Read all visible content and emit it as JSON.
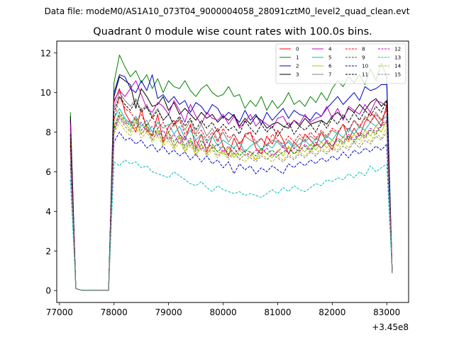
{
  "chart_data": {
    "type": "line",
    "suptitle": "Data file: modeM0/AS1A10_073T04_9000004058_28091cztM0_level2_quad_clean.evt",
    "title": "Quadrant 0 module wise count rates with 100.0s bins.",
    "xlabel": "",
    "ylabel": "",
    "x_offset_label": "+3.45e8",
    "x_offset": 345000000,
    "xlim": [
      76950,
      83400
    ],
    "ylim": [
      -0.6,
      12.6
    ],
    "x_ticks": [
      77000,
      78000,
      79000,
      80000,
      81000,
      82000,
      83000
    ],
    "x_tick_labels": [
      "77000",
      "78000",
      "79000",
      "80000",
      "81000",
      "82000",
      "83000"
    ],
    "y_ticks": [
      0,
      2,
      4,
      6,
      8,
      10,
      12
    ],
    "y_tick_labels": [
      "0",
      "2",
      "4",
      "6",
      "8",
      "10",
      "12"
    ],
    "legend_location": "upper right",
    "x": [
      77200,
      77300,
      77400,
      77500,
      77600,
      77700,
      77800,
      77900,
      78000,
      78100,
      78200,
      78300,
      78400,
      78500,
      78600,
      78700,
      78800,
      78900,
      79000,
      79100,
      79200,
      79300,
      79400,
      79500,
      79600,
      79700,
      79800,
      79900,
      80000,
      80100,
      80200,
      80300,
      80400,
      80500,
      80600,
      80700,
      80800,
      80900,
      81000,
      81100,
      81200,
      81300,
      81400,
      81500,
      81600,
      81700,
      81800,
      81900,
      82000,
      82100,
      82200,
      82300,
      82400,
      82500,
      82600,
      82700,
      82800,
      82900,
      83000,
      83100
    ],
    "series": [
      {
        "name": "0",
        "color": "#ff0000",
        "dashed": false,
        "values": [
          8.2,
          0.1,
          0.02,
          0.02,
          0.02,
          0.02,
          0.02,
          0.02,
          9.5,
          10.2,
          9.0,
          8.5,
          8.0,
          9.2,
          8.1,
          7.8,
          8.9,
          7.5,
          8.3,
          8.6,
          7.9,
          7.6,
          8.4,
          7.2,
          7.9,
          7.0,
          7.8,
          8.2,
          7.3,
          6.8,
          7.7,
          7.1,
          7.9,
          8.0,
          7.2,
          6.9,
          7.8,
          7.4,
          8.1,
          7.6,
          6.9,
          7.5,
          7.2,
          7.9,
          7.6,
          7.3,
          8.0,
          7.5,
          7.1,
          7.9,
          8.4,
          7.6,
          8.2,
          7.8,
          8.5,
          9.0,
          8.7,
          8.3,
          9.4,
          0.9
        ]
      },
      {
        "name": "1",
        "color": "#008000",
        "dashed": false,
        "values": [
          9.0,
          0.1,
          0.02,
          0.02,
          0.02,
          0.02,
          0.02,
          0.02,
          10.5,
          11.9,
          11.3,
          10.8,
          11.1,
          10.5,
          10.9,
          10.2,
          10.7,
          10.0,
          10.6,
          10.3,
          10.2,
          10.6,
          10.1,
          9.8,
          10.2,
          10.4,
          10.0,
          9.8,
          9.9,
          10.3,
          9.8,
          9.9,
          9.2,
          9.6,
          9.3,
          9.8,
          9.1,
          9.6,
          9.2,
          9.5,
          10.0,
          9.4,
          9.6,
          9.3,
          9.8,
          9.5,
          10.0,
          9.6,
          10.2,
          10.6,
          10.3,
          10.8,
          10.5,
          10.9,
          10.4,
          11.2,
          10.6,
          11.5,
          10.8,
          0.9
        ]
      },
      {
        "name": "2",
        "color": "#0000cc",
        "dashed": false,
        "values": [
          8.6,
          0.1,
          0.02,
          0.02,
          0.02,
          0.02,
          0.02,
          0.02,
          10.0,
          10.9,
          10.8,
          10.2,
          10.0,
          10.6,
          10.1,
          10.9,
          9.7,
          9.9,
          9.5,
          9.8,
          9.4,
          9.6,
          9.0,
          9.5,
          9.3,
          8.9,
          9.4,
          9.2,
          8.7,
          9.0,
          8.8,
          8.5,
          9.1,
          8.6,
          8.9,
          8.4,
          9.0,
          8.6,
          8.9,
          9.2,
          8.7,
          9.1,
          8.9,
          8.8,
          8.6,
          9.0,
          8.8,
          9.2,
          9.5,
          9.8,
          9.4,
          9.7,
          10.0,
          9.6,
          10.3,
          10.1,
          10.2,
          10.4,
          10.4,
          0.9
        ]
      },
      {
        "name": "3",
        "color": "#000000",
        "dashed": false,
        "values": [
          8.8,
          0.1,
          0.02,
          0.02,
          0.02,
          0.02,
          0.02,
          0.02,
          9.8,
          10.8,
          10.6,
          10.4,
          9.2,
          10.2,
          9.8,
          9.3,
          9.4,
          9.8,
          9.1,
          9.5,
          8.9,
          9.2,
          8.9,
          8.6,
          9.0,
          8.7,
          8.9,
          8.5,
          8.8,
          8.6,
          8.9,
          8.3,
          8.7,
          8.4,
          8.8,
          8.6,
          8.2,
          8.4,
          8.5,
          8.3,
          8.2,
          8.6,
          8.3,
          8.7,
          8.4,
          8.5,
          8.6,
          8.4,
          8.8,
          9.0,
          8.7,
          9.2,
          9.0,
          9.4,
          9.1,
          9.5,
          9.7,
          9.3,
          9.6,
          0.9
        ]
      },
      {
        "name": "4",
        "color": "#bf00bf",
        "dashed": false,
        "values": [
          8.4,
          0.1,
          0.02,
          0.02,
          0.02,
          0.02,
          0.02,
          0.02,
          9.6,
          10.1,
          9.8,
          10.2,
          10.6,
          9.9,
          9.2,
          9.0,
          9.5,
          9.3,
          8.9,
          9.6,
          9.1,
          8.5,
          9.4,
          8.8,
          8.4,
          9.0,
          8.7,
          8.6,
          8.9,
          8.4,
          8.8,
          8.2,
          8.5,
          8.9,
          8.3,
          8.6,
          8.4,
          8.2,
          8.7,
          8.8,
          8.3,
          8.6,
          8.4,
          8.9,
          8.5,
          8.7,
          8.8,
          9.3,
          8.7,
          9.2,
          8.6,
          9.3,
          9.1,
          8.9,
          9.4,
          9.0,
          9.6,
          9.5,
          9.3,
          0.9
        ]
      },
      {
        "name": "5",
        "color": "#00bfbf",
        "dashed": false,
        "values": [
          7.4,
          0.1,
          0.02,
          0.02,
          0.02,
          0.02,
          0.02,
          0.02,
          8.7,
          9.2,
          8.7,
          8.4,
          8.8,
          8.3,
          8.6,
          8.0,
          8.5,
          8.2,
          8.4,
          7.9,
          8.3,
          7.7,
          8.1,
          7.6,
          7.9,
          7.5,
          7.8,
          7.3,
          7.6,
          7.4,
          7.2,
          7.5,
          7.0,
          7.3,
          7.5,
          7.1,
          7.4,
          7.2,
          7.6,
          7.3,
          7.5,
          7.2,
          7.4,
          7.6,
          7.3,
          7.7,
          7.5,
          7.8,
          7.6,
          8.0,
          7.7,
          8.2,
          7.9,
          8.3,
          8.1,
          8.5,
          8.3,
          8.6,
          8.8,
          0.9
        ]
      },
      {
        "name": "6",
        "color": "#bfbf00",
        "dashed": false,
        "values": [
          7.0,
          0.1,
          0.02,
          0.02,
          0.02,
          0.02,
          0.02,
          0.02,
          8.3,
          8.9,
          8.5,
          8.1,
          8.6,
          7.9,
          8.3,
          7.6,
          8.1,
          7.4,
          8.0,
          7.2,
          7.8,
          7.0,
          7.6,
          6.8,
          7.4,
          6.9,
          7.3,
          7.0,
          6.9,
          7.2,
          6.7,
          7.1,
          6.8,
          7.0,
          6.6,
          7.2,
          6.9,
          6.7,
          7.1,
          6.8,
          7.3,
          6.9,
          7.2,
          7.0,
          7.4,
          7.1,
          7.5,
          7.2,
          7.6,
          7.3,
          7.8,
          7.5,
          7.9,
          7.6,
          8.1,
          7.8,
          8.3,
          8.0,
          8.6,
          0.9
        ]
      },
      {
        "name": "7",
        "color": "#808080",
        "dashed": false,
        "values": [
          7.8,
          0.1,
          0.02,
          0.02,
          0.02,
          0.02,
          0.02,
          0.02,
          9.2,
          10.0,
          9.6,
          9.3,
          9.7,
          9.1,
          9.4,
          8.8,
          9.2,
          8.6,
          8.9,
          8.3,
          8.7,
          8.1,
          8.6,
          7.9,
          8.4,
          7.8,
          8.2,
          7.6,
          8.0,
          7.5,
          7.9,
          7.4,
          7.8,
          7.6,
          7.4,
          7.7,
          7.3,
          7.6,
          7.5,
          7.2,
          7.6,
          7.3,
          7.7,
          7.5,
          7.8,
          7.6,
          8.0,
          7.7,
          8.1,
          7.9,
          8.4,
          8.0,
          8.6,
          8.2,
          8.8,
          8.5,
          9.0,
          8.6,
          9.1,
          0.9
        ]
      },
      {
        "name": "8",
        "color": "#ff0000",
        "dashed": true,
        "values": [
          7.6,
          0.1,
          0.02,
          0.02,
          0.02,
          0.02,
          0.02,
          0.02,
          8.6,
          9.8,
          9.2,
          9.0,
          8.6,
          8.9,
          8.3,
          8.8,
          8.2,
          8.5,
          8.0,
          8.4,
          8.6,
          7.9,
          8.3,
          7.8,
          8.1,
          7.6,
          8.0,
          7.5,
          8.2,
          7.7,
          7.9,
          7.4,
          7.8,
          8.0,
          7.5,
          7.7,
          7.3,
          7.9,
          7.6,
          7.4,
          7.8,
          7.5,
          7.9,
          7.6,
          8.0,
          7.7,
          8.1,
          7.8,
          8.2,
          8.0,
          8.4,
          8.1,
          8.6,
          8.3,
          8.7,
          8.5,
          8.9,
          8.6,
          9.2,
          0.9
        ]
      },
      {
        "name": "9",
        "color": "#008000",
        "dashed": true,
        "values": [
          7.3,
          0.1,
          0.02,
          0.02,
          0.02,
          0.02,
          0.02,
          0.02,
          8.2,
          9.0,
          8.6,
          8.3,
          8.7,
          8.1,
          8.4,
          7.8,
          8.2,
          7.7,
          8.0,
          7.5,
          7.9,
          7.3,
          7.7,
          7.1,
          7.6,
          7.2,
          7.4,
          7.0,
          7.3,
          6.9,
          7.2,
          6.8,
          7.1,
          7.0,
          6.8,
          7.2,
          6.9,
          7.1,
          6.8,
          7.0,
          7.2,
          6.9,
          7.1,
          7.3,
          7.0,
          7.4,
          7.2,
          7.5,
          7.3,
          7.6,
          7.4,
          7.8,
          7.5,
          7.9,
          7.7,
          8.1,
          7.9,
          8.3,
          8.5,
          0.9
        ]
      },
      {
        "name": "10",
        "color": "#0000cc",
        "dashed": true,
        "values": [
          6.4,
          0.1,
          0.02,
          0.02,
          0.02,
          0.02,
          0.02,
          0.02,
          7.5,
          8.0,
          7.6,
          7.7,
          7.4,
          7.6,
          7.2,
          7.4,
          7.0,
          7.3,
          6.9,
          7.1,
          6.8,
          7.0,
          6.6,
          6.9,
          6.5,
          6.8,
          6.4,
          6.6,
          6.2,
          6.5,
          5.9,
          6.4,
          6.1,
          6.3,
          5.9,
          6.2,
          6.0,
          6.3,
          6.1,
          5.9,
          6.4,
          6.2,
          6.5,
          6.3,
          6.6,
          6.4,
          6.7,
          6.5,
          6.8,
          6.6,
          7.0,
          6.7,
          7.1,
          6.9,
          7.2,
          7.0,
          7.3,
          7.1,
          7.4,
          0.9
        ]
      },
      {
        "name": "11",
        "color": "#000000",
        "dashed": true,
        "values": [
          7.9,
          0.1,
          0.02,
          0.02,
          0.02,
          0.02,
          0.02,
          0.02,
          9.0,
          9.8,
          9.4,
          9.1,
          9.6,
          9.0,
          9.3,
          8.7,
          9.1,
          8.6,
          8.9,
          8.4,
          8.8,
          8.3,
          8.7,
          8.1,
          8.6,
          8.2,
          8.5,
          8.0,
          8.4,
          8.1,
          8.3,
          7.9,
          8.6,
          8.2,
          7.9,
          8.4,
          8.0,
          8.3,
          7.8,
          8.2,
          8.5,
          7.9,
          8.3,
          8.1,
          8.4,
          8.0,
          8.6,
          8.2,
          8.7,
          8.4,
          8.9,
          8.5,
          9.0,
          8.6,
          9.1,
          8.8,
          9.3,
          9.0,
          9.6,
          0.9
        ]
      },
      {
        "name": "12",
        "color": "#bf00bf",
        "dashed": true,
        "values": [
          7.1,
          0.1,
          0.02,
          0.02,
          0.02,
          0.02,
          0.02,
          0.02,
          8.1,
          8.8,
          8.4,
          8.6,
          8.2,
          8.5,
          8.0,
          8.3,
          7.8,
          8.1,
          7.6,
          7.9,
          7.4,
          7.8,
          7.3,
          7.6,
          7.1,
          7.5,
          7.2,
          7.4,
          7.0,
          7.3,
          6.9,
          7.2,
          7.0,
          6.8,
          7.1,
          6.9,
          7.2,
          6.8,
          7.0,
          7.3,
          6.9,
          7.2,
          7.0,
          7.4,
          7.1,
          7.5,
          7.2,
          7.6,
          7.3,
          7.7,
          7.5,
          7.9,
          7.6,
          8.0,
          7.8,
          8.2,
          8.0,
          8.4,
          8.6,
          0.9
        ]
      },
      {
        "name": "13",
        "color": "#00bfbf",
        "dashed": true,
        "values": [
          5.6,
          0.1,
          0.02,
          0.02,
          0.02,
          0.02,
          0.02,
          0.02,
          6.5,
          6.3,
          6.6,
          6.4,
          6.5,
          6.2,
          6.3,
          6.0,
          5.9,
          5.8,
          5.7,
          6.0,
          5.8,
          5.6,
          5.4,
          5.3,
          5.5,
          5.2,
          5.0,
          5.3,
          5.1,
          5.0,
          4.9,
          5.0,
          4.8,
          4.9,
          4.8,
          4.7,
          4.9,
          5.1,
          4.9,
          5.2,
          5.0,
          5.3,
          5.1,
          5.0,
          5.2,
          5.4,
          5.3,
          5.6,
          5.5,
          5.7,
          5.6,
          5.9,
          5.7,
          6.0,
          5.8,
          6.3,
          6.0,
          6.2,
          6.4,
          0.9
        ]
      },
      {
        "name": "14",
        "color": "#bfbf00",
        "dashed": true,
        "values": [
          6.8,
          0.1,
          0.02,
          0.02,
          0.02,
          0.02,
          0.02,
          0.02,
          7.9,
          8.5,
          8.1,
          7.8,
          8.3,
          7.7,
          8.0,
          7.5,
          7.8,
          7.3,
          7.6,
          7.1,
          7.5,
          7.0,
          7.3,
          6.9,
          7.2,
          6.8,
          7.1,
          6.7,
          7.0,
          6.6,
          6.9,
          6.7,
          6.5,
          6.8,
          6.6,
          6.9,
          6.7,
          6.5,
          6.8,
          6.6,
          6.9,
          6.7,
          7.0,
          6.8,
          7.1,
          6.9,
          7.2,
          7.0,
          7.3,
          7.1,
          7.5,
          7.2,
          7.6,
          7.4,
          7.8,
          7.5,
          8.0,
          7.7,
          8.2,
          0.9
        ]
      },
      {
        "name": "15",
        "color": "#808080",
        "dashed": true,
        "values": [
          7.0,
          0.1,
          0.02,
          0.02,
          0.02,
          0.02,
          0.02,
          0.02,
          8.0,
          8.7,
          8.3,
          8.0,
          8.5,
          7.9,
          8.2,
          7.6,
          8.0,
          7.5,
          7.8,
          7.3,
          7.7,
          7.2,
          7.5,
          7.0,
          7.4,
          6.9,
          7.2,
          6.8,
          7.1,
          6.7,
          7.0,
          6.6,
          6.9,
          6.7,
          6.5,
          6.8,
          6.6,
          6.9,
          6.7,
          6.5,
          6.8,
          6.6,
          6.9,
          6.7,
          7.0,
          6.8,
          7.1,
          6.9,
          7.2,
          7.0,
          7.3,
          7.1,
          7.5,
          7.2,
          7.6,
          7.4,
          7.8,
          7.6,
          8.0,
          0.9
        ]
      }
    ]
  }
}
